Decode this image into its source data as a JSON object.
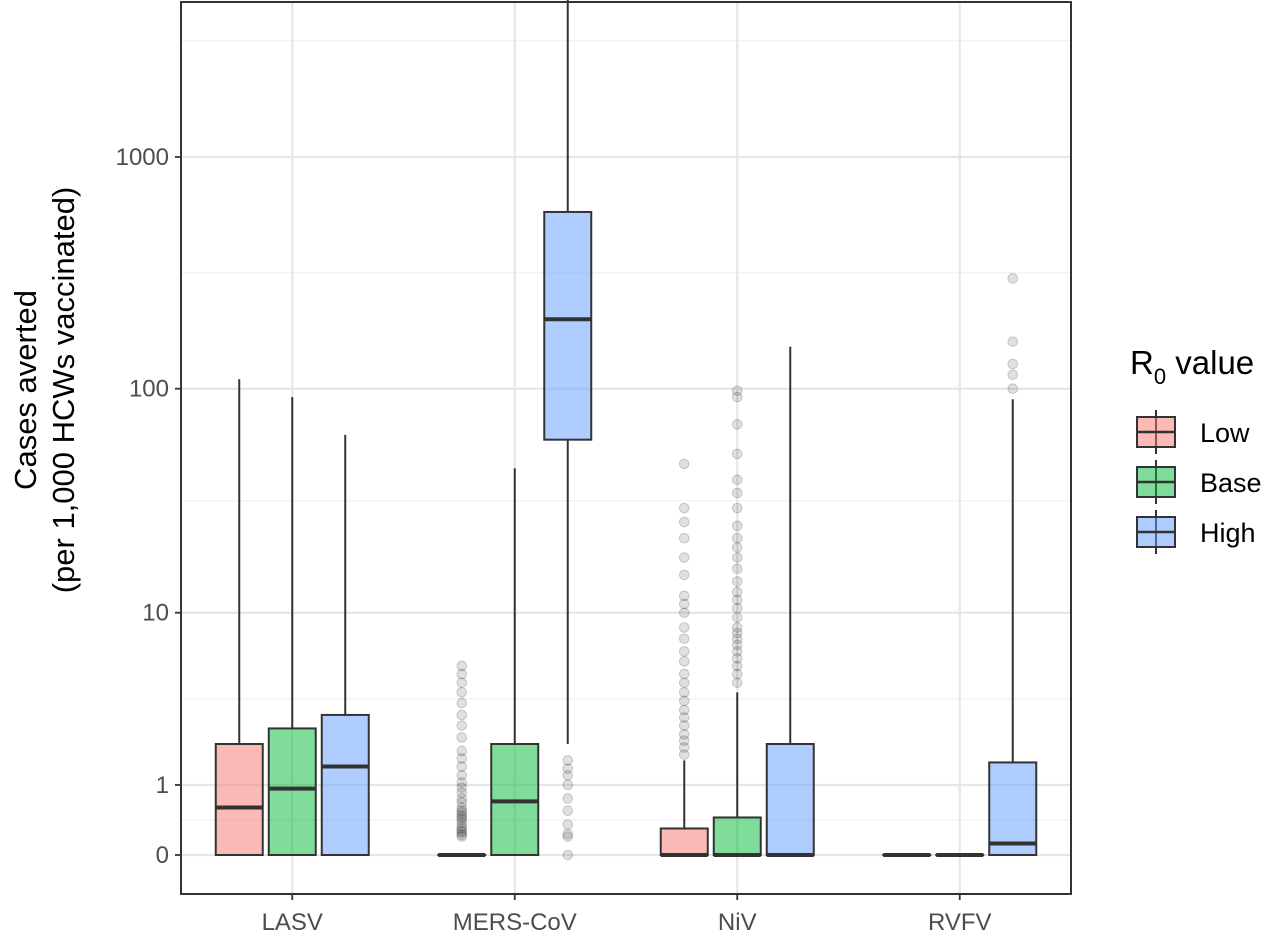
{
  "chart_data": {
    "type": "box",
    "y_scale": "pseudo-log",
    "ylabel_line1": "Cases averted",
    "ylabel_line2": "(per 1,000 HCWs vaccinated)",
    "categories": [
      "LASV",
      "MERS-CoV",
      "NiV",
      "RVFV"
    ],
    "y_ticks": [
      {
        "value": 0,
        "label": "0"
      },
      {
        "value": 1,
        "label": "1"
      },
      {
        "value": 10,
        "label": "10"
      },
      {
        "value": 100,
        "label": "100"
      },
      {
        "value": 1000,
        "label": "1000"
      }
    ],
    "y_range": [
      0,
      7000
    ],
    "grid": true,
    "legend": {
      "title_main": "R",
      "title_sub": "0",
      "title_rest": " value",
      "placement": "right",
      "items": [
        {
          "key": "Low",
          "label": "Low",
          "color": "#F8766D"
        },
        {
          "key": "Base",
          "label": "Base",
          "color": "#00BA38"
        },
        {
          "key": "High",
          "label": "High",
          "color": "#619CFF"
        }
      ]
    },
    "series": [
      {
        "name": "Low",
        "color": "#F8766D",
        "boxes": [
          {
            "category": "LASV",
            "q1": 0,
            "median": 0.6,
            "q3": 2.0,
            "whisker_low": 0,
            "whisker_high": 110,
            "outliers": []
          },
          {
            "category": "MERS-CoV",
            "q1": 0,
            "median": 0,
            "q3": 0,
            "whisker_low": 0,
            "whisker_high": 0,
            "outliers": [
              0.2,
              0.22,
              0.25,
              0.27,
              0.3,
              0.33,
              0.38,
              0.42,
              0.45,
              0.48,
              0.52,
              0.55,
              0.6,
              0.68,
              0.75,
              0.85,
              0.95,
              1.05,
              1.2,
              1.4,
              1.6,
              1.8,
              2.2,
              2.6,
              3.0,
              3.5,
              4.0,
              4.5,
              5.0,
              5.5
            ]
          },
          {
            "category": "NiV",
            "q1": 0,
            "median": 0,
            "q3": 0.3,
            "whisker_low": 0,
            "whisker_high": 1.55,
            "outliers": [
              1.7,
              1.9,
              2.1,
              2.3,
              2.6,
              2.9,
              3.2,
              3.6,
              4.0,
              4.5,
              5.0,
              5.8,
              6.5,
              7.5,
              8.5,
              10,
              11,
              12,
              15,
              18,
              22,
              26,
              30,
              47
            ]
          },
          {
            "category": "RVFV",
            "q1": 0,
            "median": 0,
            "q3": 0,
            "whisker_low": 0,
            "whisker_high": 0,
            "outliers": []
          }
        ]
      },
      {
        "name": "Base",
        "color": "#00BA38",
        "boxes": [
          {
            "category": "LASV",
            "q1": 0,
            "median": 0.93,
            "q3": 2.5,
            "whisker_low": 0,
            "whisker_high": 92,
            "outliers": []
          },
          {
            "category": "MERS-CoV",
            "q1": 0,
            "median": 0.7,
            "q3": 2.0,
            "whisker_low": 0,
            "whisker_high": 45,
            "outliers": []
          },
          {
            "category": "NiV",
            "q1": 0,
            "median": 0,
            "q3": 0.45,
            "whisker_low": 0,
            "whisker_high": 4.0,
            "outliers": [
              4.5,
              5.0,
              5.5,
              6.0,
              6.5,
              7.0,
              7.5,
              8.0,
              8.5,
              9.5,
              10.5,
              11.5,
              12.5,
              14,
              16,
              18,
              20,
              22,
              25,
              30,
              35,
              40,
              52,
              70,
              92,
              98
            ]
          },
          {
            "category": "RVFV",
            "q1": 0,
            "median": 0,
            "q3": 0,
            "whisker_low": 0,
            "whisker_high": 0,
            "outliers": []
          }
        ]
      },
      {
        "name": "High",
        "color": "#619CFF",
        "boxes": [
          {
            "category": "LASV",
            "q1": 0,
            "median": 1.4,
            "q3": 3.0,
            "whisker_low": 0,
            "whisker_high": 63,
            "outliers": []
          },
          {
            "category": "MERS-CoV",
            "q1": 60,
            "median": 200,
            "q3": 580,
            "whisker_low": 2.0,
            "whisker_high": 4800,
            "outliers": [
              0,
              0.2,
              0.23,
              0.35,
              0.55,
              0.75,
              1.0,
              1.2,
              1.35,
              1.55
            ]
          },
          {
            "category": "NiV",
            "q1": 0,
            "median": 0,
            "q3": 2.0,
            "whisker_low": 0,
            "whisker_high": 152,
            "outliers": []
          },
          {
            "category": "RVFV",
            "q1": 0,
            "median": 0.12,
            "q3": 1.5,
            "whisker_low": 0,
            "whisker_high": 90,
            "outliers": [
              100,
              115,
              128,
              160,
              300
            ]
          }
        ]
      }
    ]
  }
}
